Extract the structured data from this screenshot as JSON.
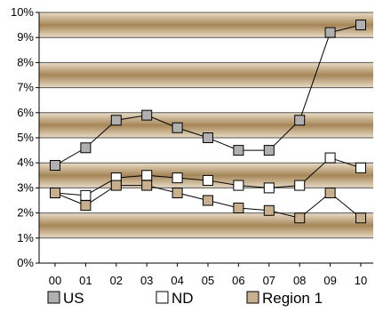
{
  "chart_data": {
    "type": "line",
    "categories": [
      "00",
      "01",
      "02",
      "03",
      "04",
      "05",
      "06",
      "07",
      "08",
      "09",
      "10"
    ],
    "ylim": [
      0,
      10
    ],
    "y_ticks": [
      "0%",
      "1%",
      "2%",
      "3%",
      "4%",
      "5%",
      "6%",
      "7%",
      "8%",
      "9%",
      "10%"
    ],
    "grid": true,
    "background": "alternating tan bands",
    "legend_position": "bottom",
    "series": [
      {
        "name": "US",
        "marker": "square",
        "color": "#b0b0b0",
        "values": [
          3.9,
          4.6,
          5.7,
          5.9,
          5.4,
          5.0,
          4.5,
          4.5,
          5.7,
          9.2,
          9.5
        ]
      },
      {
        "name": "ND",
        "marker": "square",
        "color": "#ffffff",
        "values": [
          2.8,
          2.7,
          3.4,
          3.5,
          3.4,
          3.3,
          3.1,
          3.0,
          3.1,
          4.2,
          3.8
        ]
      },
      {
        "name": "Region 1",
        "marker": "square",
        "color": "#c8b08e",
        "values": [
          2.8,
          2.3,
          3.1,
          3.1,
          2.8,
          2.5,
          2.2,
          2.1,
          1.8,
          2.8,
          1.8
        ]
      }
    ]
  }
}
